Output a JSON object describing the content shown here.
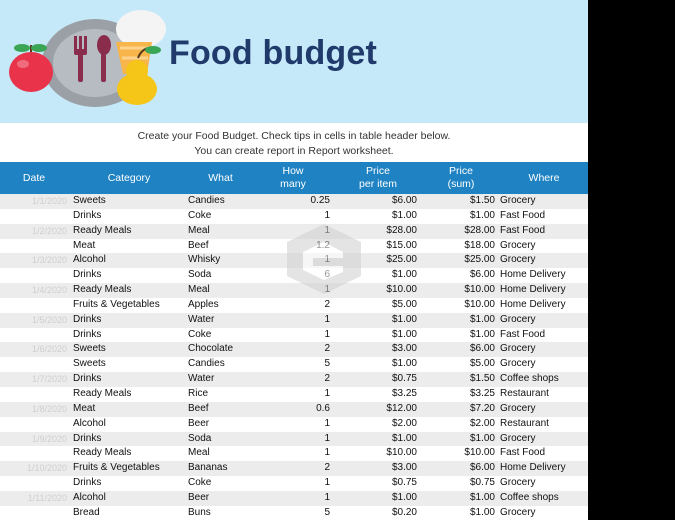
{
  "banner": {
    "title": "Food budget"
  },
  "intro": {
    "line1": "Create your Food Budget. Check tips in cells in table header below.",
    "line2": "You can create report in Report worksheet."
  },
  "table": {
    "headers": {
      "date": "Date",
      "category": "Category",
      "what": "What",
      "how_many_1": "How",
      "how_many_2": "many",
      "price_1": "Price",
      "price_2": "per item",
      "sum_1": "Price",
      "sum_2": "(sum)",
      "where": "Where"
    },
    "rows": [
      {
        "date": "1/1/2020",
        "category": "Sweets",
        "what": "Candies",
        "how_many": "0.25",
        "price": "$6.00",
        "sum": "$1.50",
        "where": "Grocery"
      },
      {
        "date": "",
        "category": "Drinks",
        "what": "Coke",
        "how_many": "1",
        "price": "$1.00",
        "sum": "$1.00",
        "where": "Fast Food"
      },
      {
        "date": "1/2/2020",
        "category": "Ready Meals",
        "what": "Meal",
        "how_many": "1",
        "price": "$28.00",
        "sum": "$28.00",
        "where": "Fast Food"
      },
      {
        "date": "",
        "category": "Meat",
        "what": "Beef",
        "how_many": "1.2",
        "price": "$15.00",
        "sum": "$18.00",
        "where": "Grocery"
      },
      {
        "date": "1/3/2020",
        "category": "Alcohol",
        "what": "Whisky",
        "how_many": "1",
        "price": "$25.00",
        "sum": "$25.00",
        "where": "Grocery"
      },
      {
        "date": "",
        "category": "Drinks",
        "what": "Soda",
        "how_many": "6",
        "price": "$1.00",
        "sum": "$6.00",
        "where": "Home Delivery"
      },
      {
        "date": "1/4/2020",
        "category": "Ready Meals",
        "what": "Meal",
        "how_many": "1",
        "price": "$10.00",
        "sum": "$10.00",
        "where": "Home Delivery"
      },
      {
        "date": "",
        "category": "Fruits & Vegetables",
        "what": "Apples",
        "how_many": "2",
        "price": "$5.00",
        "sum": "$10.00",
        "where": "Home Delivery"
      },
      {
        "date": "1/5/2020",
        "category": "Drinks",
        "what": "Water",
        "how_many": "1",
        "price": "$1.00",
        "sum": "$1.00",
        "where": "Grocery"
      },
      {
        "date": "",
        "category": "Drinks",
        "what": "Coke",
        "how_many": "1",
        "price": "$1.00",
        "sum": "$1.00",
        "where": "Fast Food"
      },
      {
        "date": "1/6/2020",
        "category": "Sweets",
        "what": "Chocolate",
        "how_many": "2",
        "price": "$3.00",
        "sum": "$6.00",
        "where": "Grocery"
      },
      {
        "date": "",
        "category": "Sweets",
        "what": "Candies",
        "how_many": "5",
        "price": "$1.00",
        "sum": "$5.00",
        "where": "Grocery"
      },
      {
        "date": "1/7/2020",
        "category": "Drinks",
        "what": "Water",
        "how_many": "2",
        "price": "$0.75",
        "sum": "$1.50",
        "where": "Coffee shops"
      },
      {
        "date": "",
        "category": "Ready Meals",
        "what": "Rice",
        "how_many": "1",
        "price": "$3.25",
        "sum": "$3.25",
        "where": "Restaurant"
      },
      {
        "date": "1/8/2020",
        "category": "Meat",
        "what": "Beef",
        "how_many": "0.6",
        "price": "$12.00",
        "sum": "$7.20",
        "where": "Grocery"
      },
      {
        "date": "",
        "category": "Alcohol",
        "what": "Beer",
        "how_many": "1",
        "price": "$2.00",
        "sum": "$2.00",
        "where": "Restaurant"
      },
      {
        "date": "1/9/2020",
        "category": "Drinks",
        "what": "Soda",
        "how_many": "1",
        "price": "$1.00",
        "sum": "$1.00",
        "where": "Grocery"
      },
      {
        "date": "",
        "category": "Ready Meals",
        "what": "Meal",
        "how_many": "1",
        "price": "$10.00",
        "sum": "$10.00",
        "where": "Fast Food"
      },
      {
        "date": "1/10/2020",
        "category": "Fruits & Vegetables",
        "what": "Bananas",
        "how_many": "2",
        "price": "$3.00",
        "sum": "$6.00",
        "where": "Home Delivery"
      },
      {
        "date": "",
        "category": "Drinks",
        "what": "Coke",
        "how_many": "1",
        "price": "$0.75",
        "sum": "$0.75",
        "where": "Grocery"
      },
      {
        "date": "1/11/2020",
        "category": "Alcohol",
        "what": "Beer",
        "how_many": "1",
        "price": "$1.00",
        "sum": "$1.00",
        "where": "Coffee shops"
      },
      {
        "date": "",
        "category": "Bread",
        "what": "Buns",
        "how_many": "5",
        "price": "$0.20",
        "sum": "$1.00",
        "where": "Grocery"
      }
    ]
  }
}
